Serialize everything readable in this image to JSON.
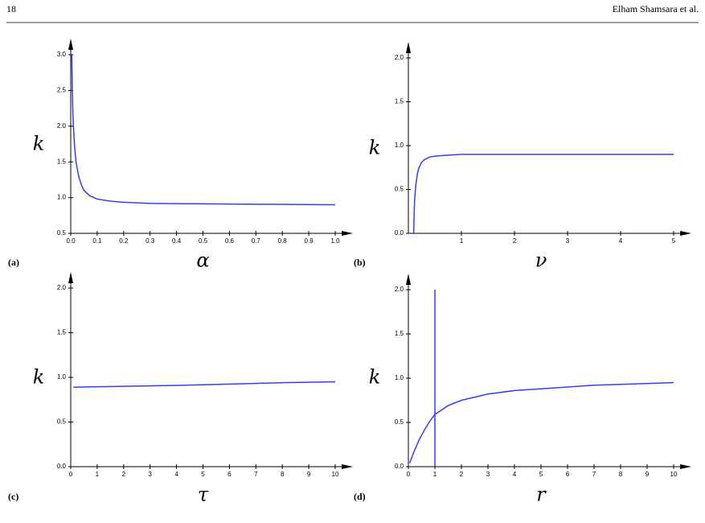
{
  "header": {
    "page": "18",
    "author": "Elham Shamsara et al."
  },
  "chart_data": [
    {
      "type": "line",
      "label": "(a)",
      "xlabel": "α",
      "ylabel": "k",
      "xlim": [
        0,
        1
      ],
      "ylim": [
        0.5,
        3
      ],
      "xticks": [
        {
          "value": 0,
          "label": "0.0"
        },
        0.1,
        0.2,
        0.3,
        0.4,
        0.5,
        0.6,
        0.7,
        0.8,
        0.9,
        {
          "value": 1,
          "label": "1.0"
        }
      ],
      "yticks": [
        0.5,
        {
          "value": 1,
          "label": "1.0"
        },
        1.5,
        {
          "value": 2,
          "label": "2.0"
        },
        2.5,
        {
          "value": 3,
          "label": "3.0"
        }
      ],
      "series": [
        {
          "color": "#3a3af2",
          "x": [
            0.004,
            0.006,
            0.008,
            0.01,
            0.015,
            0.02,
            0.03,
            0.04,
            0.05,
            0.07,
            0.1,
            0.15,
            0.2,
            0.3,
            0.4,
            0.6,
            0.8,
            1.0
          ],
          "values": [
            3.0,
            2.5,
            2.2,
            2.0,
            1.7,
            1.5,
            1.3,
            1.18,
            1.1,
            1.03,
            0.98,
            0.95,
            0.935,
            0.92,
            0.915,
            0.91,
            0.905,
            0.9
          ]
        }
      ]
    },
    {
      "type": "line",
      "label": "(b)",
      "xlabel": "ν",
      "ylabel": "k",
      "xlim": [
        0,
        5
      ],
      "ylim": [
        0,
        2
      ],
      "xticks": [
        1,
        2,
        3,
        4,
        5
      ],
      "yticks": [
        {
          "value": 0,
          "label": "0.0"
        },
        0.5,
        {
          "value": 1,
          "label": "1.0"
        },
        1.5,
        {
          "value": 2,
          "label": "2.0"
        }
      ],
      "series": [
        {
          "color": "#3a3af2",
          "x": [
            0.1,
            0.11,
            0.12,
            0.14,
            0.17,
            0.2,
            0.25,
            0.3,
            0.4,
            0.5,
            0.7,
            1,
            2,
            3,
            4,
            5
          ],
          "values": [
            0,
            0.25,
            0.4,
            0.55,
            0.68,
            0.75,
            0.81,
            0.84,
            0.87,
            0.88,
            0.89,
            0.9,
            0.9,
            0.9,
            0.9,
            0.9
          ]
        }
      ]
    },
    {
      "type": "line",
      "label": "(c)",
      "xlabel": "τ",
      "ylabel": "k",
      "xlim": [
        0,
        10
      ],
      "ylim": [
        0,
        2
      ],
      "xticks": [
        0,
        1,
        2,
        3,
        4,
        5,
        6,
        7,
        8,
        9,
        10
      ],
      "yticks": [
        {
          "value": 0,
          "label": "0.0"
        },
        0.5,
        {
          "value": 1,
          "label": "1.0"
        },
        1.5,
        {
          "value": 2,
          "label": "2.0"
        }
      ],
      "series": [
        {
          "color": "#3a3af2",
          "x": [
            0.1,
            2,
            4,
            6,
            8,
            10
          ],
          "values": [
            0.89,
            0.9,
            0.91,
            0.925,
            0.94,
            0.95
          ]
        }
      ]
    },
    {
      "type": "line",
      "label": "(d)",
      "xlabel": "r",
      "ylabel": "k",
      "xlim": [
        0,
        10
      ],
      "ylim": [
        0,
        2
      ],
      "xticks": [
        0,
        1,
        2,
        3,
        4,
        5,
        6,
        7,
        8,
        9,
        10
      ],
      "yticks": [
        {
          "value": 0,
          "label": "0.0"
        },
        0.5,
        {
          "value": 1,
          "label": "1.0"
        },
        1.5,
        {
          "value": 2,
          "label": "2.0"
        }
      ],
      "series": [
        {
          "color": "#3a3af2",
          "x": [
            0.05,
            0.2,
            0.4,
            0.6,
            0.8,
            1,
            1.5,
            2,
            3,
            4,
            5,
            6,
            7,
            8,
            9,
            10
          ],
          "values": [
            0.04,
            0.16,
            0.3,
            0.41,
            0.51,
            0.59,
            0.69,
            0.75,
            0.82,
            0.86,
            0.88,
            0.9,
            0.92,
            0.93,
            0.94,
            0.95
          ]
        },
        {
          "color": "#3a3af2",
          "x": [
            1,
            1
          ],
          "values": [
            0,
            2
          ]
        }
      ]
    }
  ]
}
